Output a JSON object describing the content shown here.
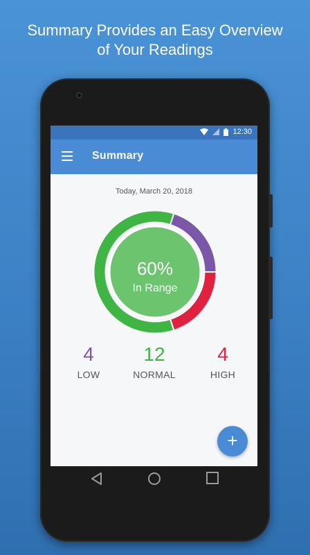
{
  "promo": {
    "line1": "Summary Provides an Easy Overview",
    "line2": "of Your Readings"
  },
  "statusbar": {
    "time": "12:30",
    "icons": [
      "wifi-icon",
      "signal-icon",
      "battery-icon"
    ]
  },
  "appbar": {
    "title": "Summary",
    "menu_icon": "hamburger-menu-icon"
  },
  "summary": {
    "date": "Today, March 20, 2018",
    "percent_label": "60%",
    "range_label": "In Range",
    "in_range_fraction": 0.6,
    "stats": [
      {
        "value": "4",
        "label": "LOW",
        "color": "#7b57a7"
      },
      {
        "value": "12",
        "label": "NORMAL",
        "color": "#3fb544"
      },
      {
        "value": "4",
        "label": "HIGH",
        "color": "#e0213f"
      }
    ]
  },
  "colors": {
    "low": "#7b57a7",
    "normal": "#3fb544",
    "high": "#e0213f",
    "inner": "#6cc46e",
    "accent": "#4a8bd6"
  },
  "fab": {
    "label": "+"
  },
  "navbar": {
    "icons": [
      "back-icon",
      "home-icon",
      "recents-icon"
    ]
  }
}
